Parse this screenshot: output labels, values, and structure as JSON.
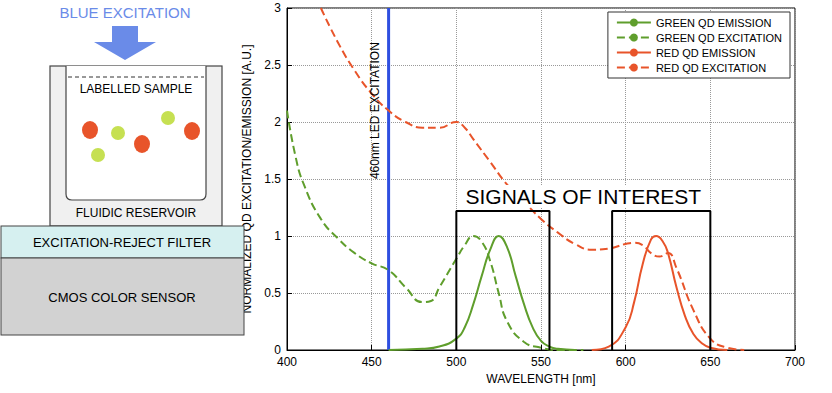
{
  "diagram": {
    "excitation": {
      "label": "BLUE EXCITATION",
      "color": "#6a8be8"
    },
    "sample": "LABELLED SAMPLE",
    "reservoir": "FLUIDIC RESERVOIR",
    "filter": "EXCITATION-REJECT FILTER",
    "sensor": "CMOS COLOR SENSOR",
    "particles": [
      "#e8542a",
      "#c6e052",
      "#e8542a",
      "#c6e052",
      "#e8542a",
      "#c6e052"
    ]
  },
  "chart_data": {
    "type": "line",
    "xlabel": "WAVELENGTH [nm]",
    "ylabel": "NORMALIZED QD EXCITATION/EMISSION [A.U.]",
    "xlim": [
      400,
      700
    ],
    "xticks": [
      400,
      450,
      500,
      550,
      600,
      650,
      700
    ],
    "ylim": [
      0,
      3
    ],
    "yticks": [
      0,
      0.5,
      1,
      1.5,
      2,
      2.5,
      3
    ],
    "grid": true,
    "legend": "upper right",
    "series": [
      {
        "name": "GREEN QD EMISSION",
        "color": "#5f9e2c",
        "line_style": "solid",
        "x": [
          460,
          480,
          490,
          500,
          505,
          510,
          515,
          520,
          525,
          530,
          535,
          540,
          545,
          550,
          555,
          560,
          570
        ],
        "values": [
          0,
          0.01,
          0.03,
          0.1,
          0.2,
          0.4,
          0.65,
          0.88,
          1.0,
          0.9,
          0.65,
          0.4,
          0.2,
          0.08,
          0.03,
          0.01,
          0
        ]
      },
      {
        "name": "GREEN QD EXCITATION",
        "color": "#5f9e2c",
        "line_style": "dashed",
        "x": [
          400,
          405,
          410,
          420,
          430,
          440,
          450,
          460,
          470,
          480,
          485,
          490,
          500,
          505,
          510,
          515,
          520,
          525,
          530,
          540,
          550,
          560,
          575
        ],
        "values": [
          2.1,
          1.7,
          1.45,
          1.15,
          0.98,
          0.85,
          0.76,
          0.7,
          0.55,
          0.42,
          0.43,
          0.55,
          0.8,
          0.92,
          1.0,
          0.95,
          0.78,
          0.5,
          0.25,
          0.07,
          0.02,
          0,
          0
        ]
      },
      {
        "name": "RED QD EMISSION",
        "color": "#e8542a",
        "line_style": "solid",
        "x": [
          580,
          590,
          600,
          605,
          610,
          615,
          618,
          622,
          625,
          630,
          635,
          640,
          645,
          650,
          660
        ],
        "values": [
          0,
          0.03,
          0.2,
          0.42,
          0.75,
          0.97,
          1.0,
          0.95,
          0.85,
          0.55,
          0.3,
          0.14,
          0.06,
          0.02,
          0
        ]
      },
      {
        "name": "RED QD EXCITATION",
        "color": "#e8542a",
        "line_style": "dashed",
        "x": [
          420,
          430,
          440,
          450,
          460,
          470,
          480,
          490,
          500,
          505,
          510,
          520,
          530,
          540,
          550,
          560,
          570,
          580,
          590,
          600,
          605,
          610,
          615,
          620,
          625,
          630,
          640,
          650,
          660,
          670
        ],
        "values": [
          3.0,
          2.7,
          2.45,
          2.25,
          2.1,
          2.0,
          1.95,
          1.95,
          2.0,
          1.95,
          1.85,
          1.65,
          1.45,
          1.3,
          1.15,
          1.03,
          0.93,
          0.88,
          0.89,
          0.93,
          0.94,
          0.92,
          0.85,
          0.82,
          0.85,
          0.72,
          0.35,
          0.1,
          0.02,
          0
        ]
      }
    ],
    "excitation_line": {
      "x": 460,
      "label": "460nm LED EXCITATION",
      "color": "#2f4fe0"
    },
    "signals": {
      "label": "SIGNALS OF INTEREST",
      "ranges": [
        [
          500,
          555
        ],
        [
          592,
          650
        ]
      ],
      "height": 1.22
    }
  }
}
